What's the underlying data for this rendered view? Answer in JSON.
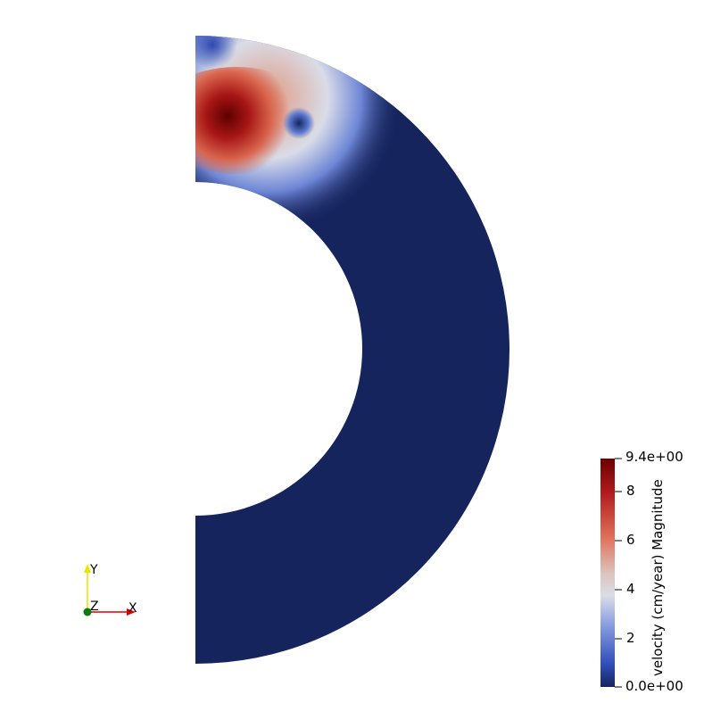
{
  "colorbar": {
    "title": "velocity (cm/year) Magnitude",
    "max_label": "9.4e+00",
    "min_label": "0.0e+00",
    "ticks": [
      "8",
      "6",
      "4",
      "2"
    ],
    "colors": {
      "high": "#6b0000",
      "upper": "#d8503b",
      "mid": "#dadde8",
      "lower": "#3b5fc9",
      "low": "#16245e"
    }
  },
  "axes": {
    "x": "X",
    "y": "Y",
    "z": "Z"
  }
}
